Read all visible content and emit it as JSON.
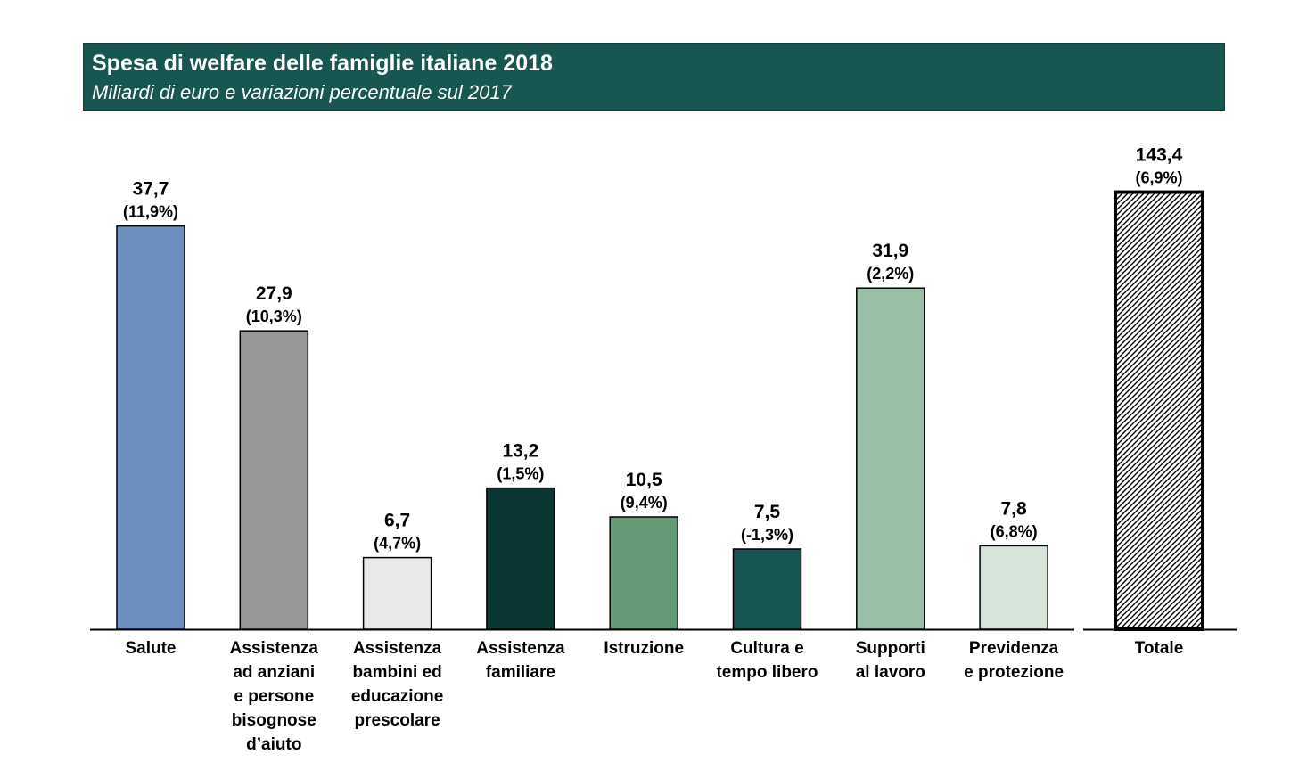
{
  "header": {
    "title": "Spesa di welfare delle famiglie italiane 2018",
    "subtitle": "Miliardi di euro e variazioni percentuale sul 2017"
  },
  "chart_data": {
    "type": "bar",
    "title": "Spesa di welfare delle famiglie italiane 2018",
    "subtitle": "Miliardi di euro e variazioni percentuale sul 2017",
    "categories": [
      "Salute",
      "Assistenza ad anziani e persone bisognose d’aiuto",
      "Assistenza bambini ed educazione prescolare",
      "Assistenza familiare",
      "Istruzione",
      "Cultura e tempo libero",
      "Supporti al lavoro",
      "Previdenza e protezione"
    ],
    "category_lines": [
      [
        "Salute"
      ],
      [
        "Assistenza",
        "ad anziani",
        "e persone",
        "bisognose",
        "d’aiuto"
      ],
      [
        "Assistenza",
        "bambini ed",
        "educazione",
        "prescolare"
      ],
      [
        "Assistenza",
        "familiare"
      ],
      [
        "Istruzione"
      ],
      [
        "Cultura e",
        "tempo libero"
      ],
      [
        "Supporti",
        "al lavoro"
      ],
      [
        "Previdenza",
        "e protezione"
      ]
    ],
    "values": [
      37.7,
      27.9,
      6.7,
      13.2,
      10.5,
      7.5,
      31.9,
      7.8
    ],
    "value_labels": [
      "37,7",
      "27,9",
      "6,7",
      "13,2",
      "10,5",
      "7,5",
      "31,9",
      "7,8"
    ],
    "change_labels": [
      "(11,9%)",
      "(10,3%)",
      "(4,7%)",
      "(1,5%)",
      "(9,4%)",
      "(-1,3%)",
      "(2,2%)",
      "(6,8%)"
    ],
    "colors": [
      "#6d8fbf",
      "#979797",
      "#e9e9e9",
      "#0a3633",
      "#649a76",
      "#175651",
      "#9bbfa6",
      "#d6e4da"
    ],
    "total": {
      "category": "Totale",
      "value": 143.4,
      "value_label": "143,4",
      "change_label": "(6,9%)",
      "pattern": "diagonal-hatch"
    },
    "ylim": [
      0,
      43
    ],
    "grid": false,
    "legend": "none"
  }
}
